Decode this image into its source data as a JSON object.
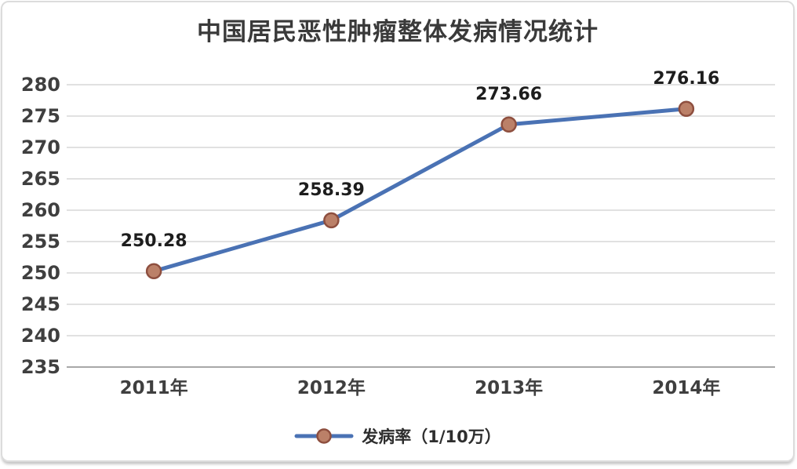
{
  "chart": {
    "title": "中国居民恶性肿瘤整体发病情况统计",
    "legend_label": "发病率（1/10万）"
  },
  "chart_data": {
    "type": "line",
    "title": "中国居民恶性肿瘤整体发病情况统计",
    "categories": [
      "2011年",
      "2012年",
      "2013年",
      "2014年"
    ],
    "series": [
      {
        "name": "发病率（1/10万）",
        "values": [
          250.28,
          258.39,
          273.66,
          276.16
        ]
      }
    ],
    "data_labels": [
      "250.28",
      "258.39",
      "273.66",
      "276.16"
    ],
    "yticks": [
      235,
      240,
      245,
      250,
      255,
      260,
      265,
      270,
      275,
      280
    ],
    "ylim": [
      235,
      280
    ],
    "grid": true,
    "legend_position": "bottom",
    "marker_shape": "circle",
    "colors": {
      "line": "#4a72b4",
      "marker_fill": "#bb8068",
      "marker_stroke": "#8e4f3f",
      "grid": "#d7d7d7",
      "axis": "#a8a8a8",
      "title_text": "#3a3a3a",
      "tick_text": "#3f3f3f",
      "data_label_text": "#1d1d1d"
    }
  }
}
